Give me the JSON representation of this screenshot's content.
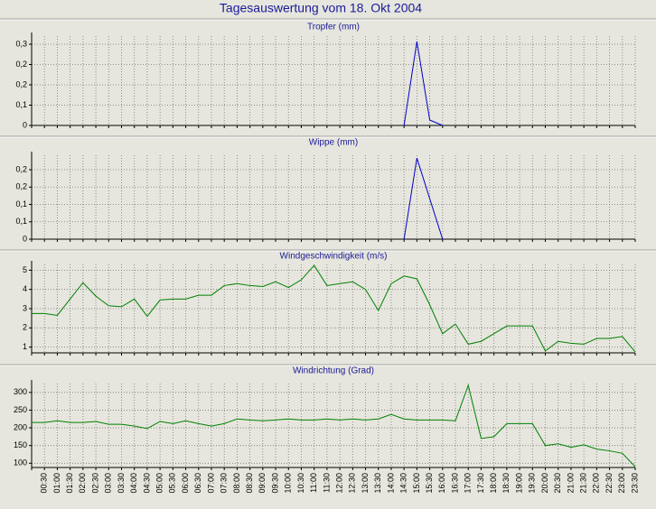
{
  "title": "Tagesauswertung vom 18. Okt 2004",
  "categories": [
    null,
    "00:30",
    "01:00",
    "01:30",
    "02:00",
    "02:30",
    "03:00",
    "03:30",
    "04:00",
    "04:30",
    "05:00",
    "05:30",
    "06:00",
    "06:30",
    "07:00",
    "07:30",
    "08:00",
    "08:30",
    "09:00",
    "09:30",
    "10:00",
    "10:30",
    "11:00",
    "11:30",
    "12:00",
    "12:30",
    "13:00",
    "13:30",
    "14:00",
    "14:30",
    "15:00",
    "15:30",
    "16:00",
    "16:30",
    "17:00",
    "17:30",
    "18:00",
    "18:30",
    "19:00",
    "19:30",
    "20:00",
    "20:30",
    "21:00",
    "21:30",
    "22:00",
    "22:30",
    "23:00",
    "23:30"
  ],
  "chart_data": [
    {
      "type": "line",
      "title": "Tropfer (mm)",
      "color": "#0000c8",
      "ylim": [
        0,
        0.33
      ],
      "yticks": [
        0,
        {
          "value": 0.075,
          "label": "0,1"
        },
        {
          "value": 0.15,
          "label": "0,2"
        },
        {
          "value": 0.225,
          "label": "0,2"
        },
        {
          "value": 0.3,
          "label": "0,3"
        }
      ],
      "values": [
        null,
        null,
        null,
        null,
        null,
        null,
        null,
        null,
        null,
        null,
        null,
        null,
        null,
        null,
        null,
        null,
        null,
        null,
        null,
        null,
        null,
        null,
        null,
        null,
        null,
        null,
        null,
        null,
        null,
        0,
        0.31,
        0.02,
        0,
        null,
        null,
        null,
        null,
        null,
        null,
        null,
        null,
        null,
        null,
        null,
        null,
        null,
        null,
        null
      ]
    },
    {
      "type": "line",
      "title": "Wippe (mm)",
      "color": "#0000c8",
      "ylim": [
        0,
        0.29
      ],
      "yticks": [
        0,
        {
          "value": 0.06,
          "label": "0,1"
        },
        {
          "value": 0.12,
          "label": "0,1"
        },
        {
          "value": 0.18,
          "label": "0,2"
        },
        {
          "value": 0.24,
          "label": "0,2"
        }
      ],
      "values": [
        null,
        null,
        null,
        null,
        null,
        null,
        null,
        null,
        null,
        null,
        null,
        null,
        null,
        null,
        null,
        null,
        null,
        null,
        null,
        null,
        null,
        null,
        null,
        null,
        null,
        null,
        null,
        null,
        null,
        0,
        0.28,
        0.14,
        0,
        null,
        null,
        null,
        null,
        null,
        null,
        null,
        null,
        null,
        null,
        null,
        null,
        null,
        null,
        null
      ]
    },
    {
      "type": "line",
      "title": "Windgeschwindigkeit (m/s)",
      "color": "#008000",
      "ylim": [
        0.7,
        5.3
      ],
      "yticks": [
        1,
        2,
        3,
        4,
        5
      ],
      "values": [
        2.75,
        2.75,
        2.65,
        3.5,
        4.35,
        3.65,
        3.15,
        3.1,
        3.5,
        2.6,
        3.45,
        3.5,
        3.5,
        3.7,
        3.7,
        4.2,
        4.3,
        4.2,
        4.15,
        4.4,
        4.1,
        4.5,
        5.25,
        4.2,
        4.3,
        4.4,
        4.0,
        2.9,
        4.3,
        4.7,
        4.55,
        3.2,
        1.7,
        2.2,
        1.15,
        1.3,
        1.7,
        2.1,
        2.1,
        2.1,
        0.8,
        1.3,
        1.2,
        1.15,
        1.45,
        1.45,
        1.55,
        0.75
      ]
    },
    {
      "type": "line",
      "title": "Windrichtung (Grad)",
      "color": "#008000",
      "ylim": [
        88,
        325
      ],
      "yticks": [
        100,
        150,
        200,
        250,
        300
      ],
      "values": [
        215,
        215,
        220,
        215,
        215,
        218,
        210,
        210,
        205,
        198,
        218,
        212,
        220,
        212,
        205,
        212,
        225,
        222,
        220,
        222,
        225,
        222,
        222,
        225,
        222,
        225,
        222,
        225,
        238,
        225,
        222,
        222,
        222,
        220,
        320,
        170,
        175,
        212,
        212,
        212,
        150,
        155,
        145,
        152,
        140,
        135,
        128,
        90
      ]
    }
  ]
}
